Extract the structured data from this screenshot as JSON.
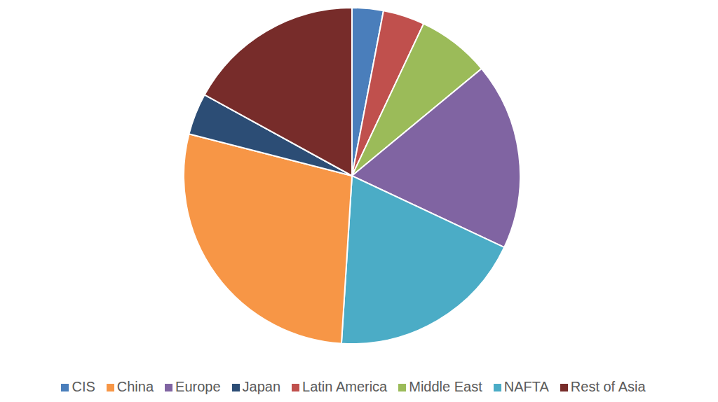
{
  "chart_data": {
    "type": "pie",
    "categories": [
      "CIS",
      "Latin America",
      "Middle East",
      "Europe",
      "NAFTA",
      "China",
      "Japan",
      "Rest of Asia"
    ],
    "values": [
      3,
      4,
      7,
      18,
      19,
      28,
      4,
      17
    ],
    "colors": [
      "#4A7EBB",
      "#C0504D",
      "#9BBB59",
      "#8064A2",
      "#4BACC6",
      "#F79646",
      "#2C4D75",
      "#772C2A"
    ],
    "legend": "bottom"
  }
}
